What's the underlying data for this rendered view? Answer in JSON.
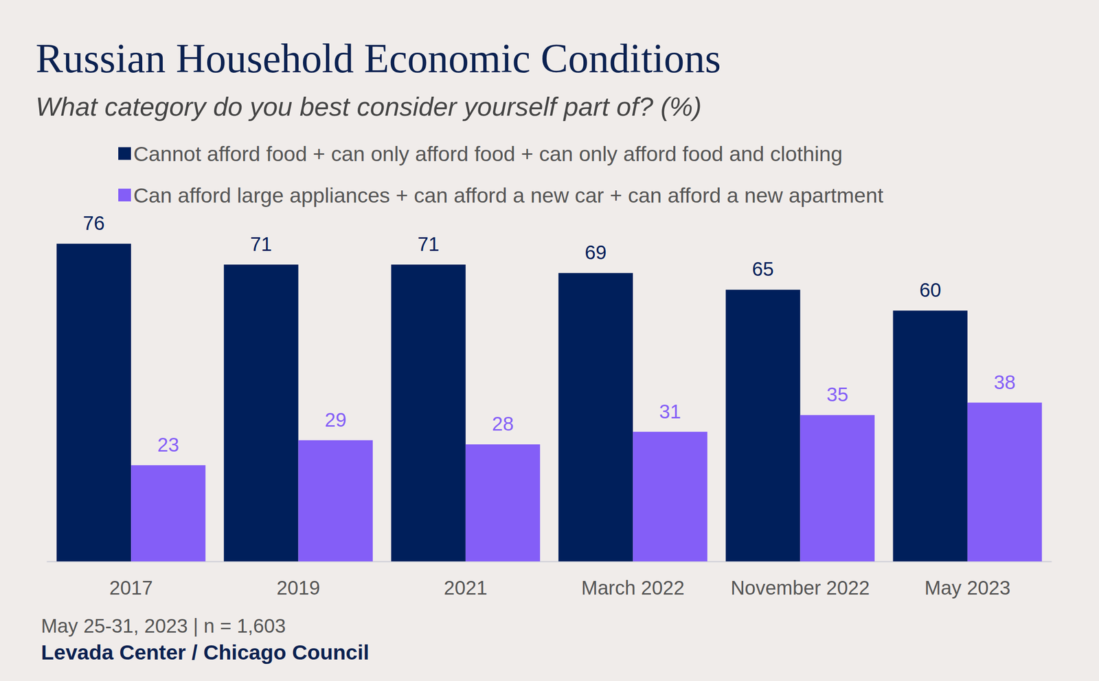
{
  "chart_data": {
    "type": "bar",
    "title": "Russian Household Economic Conditions",
    "subtitle": "What category do you best consider yourself part of? (%)",
    "categories": [
      "2017",
      "2019",
      "2021",
      "March 2022",
      "November 2022",
      "May 2023"
    ],
    "series": [
      {
        "name": "Cannot afford food + can only afford food + can only afford food and clothing",
        "color": "#001f5b",
        "values": [
          76,
          71,
          71,
          69,
          65,
          60
        ]
      },
      {
        "name": "Can afford large appliances + can afford a new car + can afford a new apartment",
        "color": "#845ef7",
        "values": [
          23,
          29,
          28,
          31,
          35,
          38
        ]
      }
    ],
    "ylim": [
      0,
      80
    ],
    "grid": false,
    "legend": "top-left",
    "data_labels": true,
    "tick_labels": "x",
    "note": "May 25-31, 2023 | n = 1,603",
    "source": "Levada Center / Chicago Council"
  }
}
